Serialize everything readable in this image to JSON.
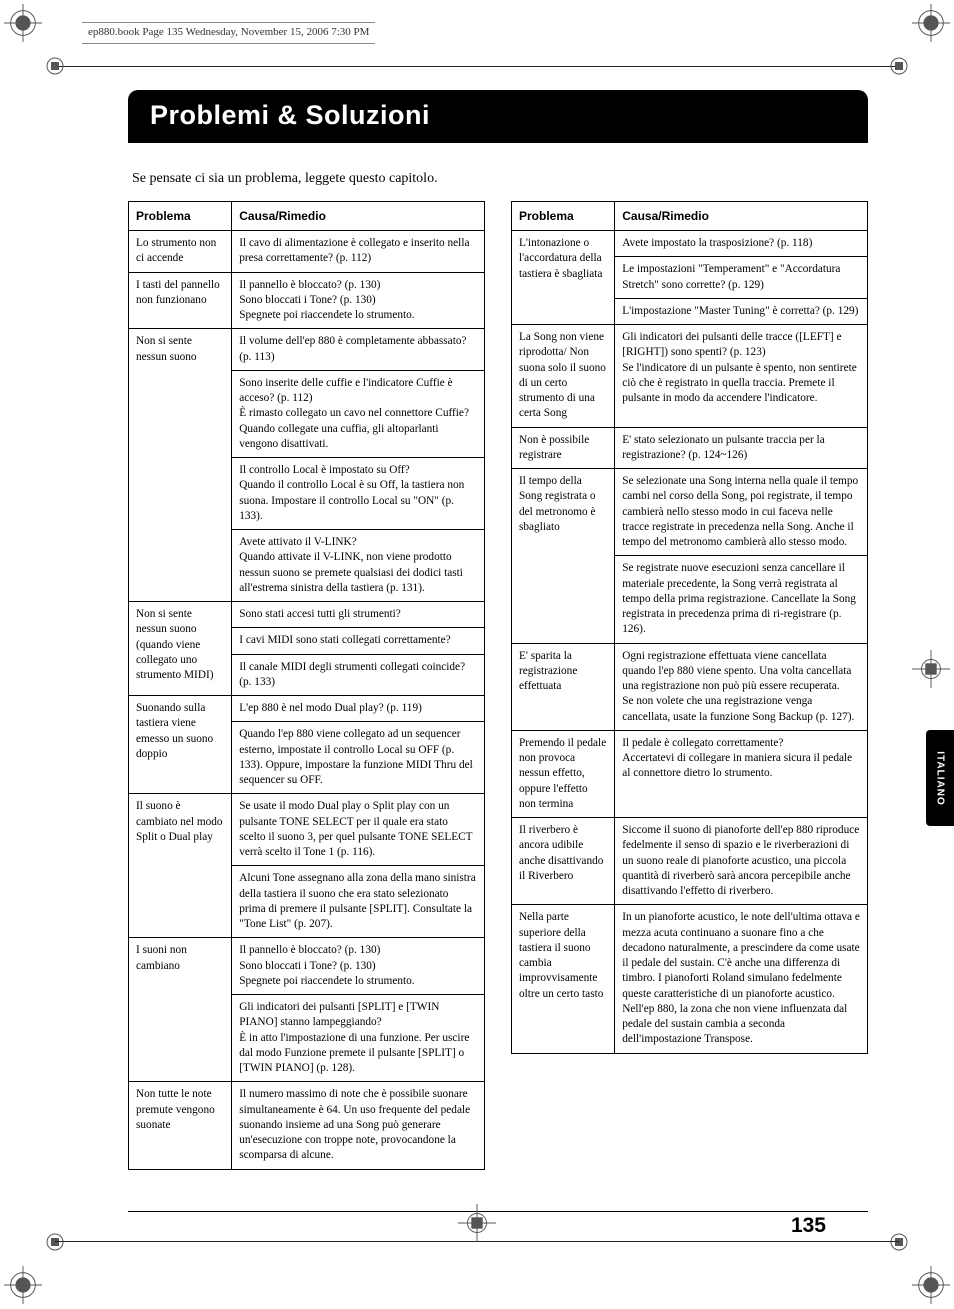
{
  "print_header": "ep880.book  Page 135  Wednesday, November 15, 2006  7:30 PM",
  "title": "Problemi & Soluzioni",
  "intro": "Se pensate ci sia un problema, leggete questo capitolo.",
  "headers": {
    "problem": "Problema",
    "remedy": "Causa/Rimedio"
  },
  "side_tab": "ITALIANO",
  "page_number": "135",
  "left_rows": [
    {
      "p": "Lo strumento non ci accende",
      "r": "Il cavo di alimentazione è collegato e inserito nella presa correttamente? (p. 112)",
      "pspan": 1
    },
    {
      "p": "I tasti del pannello non funzionano",
      "r": "Il pannello è bloccato? (p. 130)\nSono bloccati i Tone? (p. 130)\nSpegnete poi riaccendete lo strumento.",
      "pspan": 1
    },
    {
      "p": "Non si sente nessun suono",
      "r": "Il volume dell'ep 880 è completamente abbassato? (p. 113)",
      "pspan": 4
    },
    {
      "r": "Sono inserite delle cuffie e l'indicatore Cuffie è acceso? (p. 112)\nÈ rimasto collegato un cavo nel connettore Cuffie?\nQuando collegate una cuffia, gli altoparlanti vengono disattivati."
    },
    {
      "r": "Il controllo Local è impostato su Off?\nQuando il controllo Local è su Off, la tastiera non suona. Impostare il controllo Local su \"ON\" (p. 133)."
    },
    {
      "r": "Avete attivato il V-LINK?\nQuando attivate il V-LINK, non viene prodotto nessun suono se premete qualsiasi dei dodici tasti all'estrema sinistra della tastiera (p. 131)."
    },
    {
      "p": "Non si sente nessun suono (quando viene collegato uno strumento MIDI)",
      "r": "Sono stati accesi tutti gli strumenti?",
      "pspan": 3
    },
    {
      "r": "I cavi MIDI sono stati collegati correttamente?"
    },
    {
      "r": "Il canale MIDI degli strumenti collegati coincide? (p. 133)"
    },
    {
      "p": "Suonando sulla tastiera viene emesso un suono doppio",
      "r": "L'ep 880 è nel modo Dual play? (p. 119)",
      "pspan": 2
    },
    {
      "r": "Quando l'ep 880 viene collegato ad un sequencer esterno, impostate il controllo Local su OFF (p. 133). Oppure, impostare la funzione MIDI Thru del sequencer su OFF."
    },
    {
      "p": "Il suono è cambiato nel modo Split o Dual play",
      "r": "Se usate il modo Dual play o Split play con un pulsante TONE SELECT per il quale era stato scelto il suono 3, per quel pulsante TONE SELECT verrà scelto il Tone 1 (p. 116).",
      "pspan": 2
    },
    {
      "r": "Alcuni Tone assegnano alla zona della mano sinistra della tastiera il suono che era stato selezionato prima di premere il pulsante [SPLIT]. Consultate la \"Tone List\" (p. 207)."
    },
    {
      "p": "I suoni non cambiano",
      "r": "Il pannello è bloccato? (p. 130)\nSono bloccati i Tone? (p. 130)\nSpegnete poi riaccendete lo strumento.",
      "pspan": 2
    },
    {
      "r": "Gli indicatori dei pulsanti [SPLIT] e [TWIN PIANO] stanno lampeggiando?\nÈ in atto l'impostazione di una funzione. Per uscire dal modo Funzione premete il pulsante [SPLIT] o [TWIN PIANO] (p. 128)."
    },
    {
      "p": "Non tutte le note premute vengono suonate",
      "r": "Il numero massimo di note che è possibile suonare simultaneamente è 64. Un uso frequente del pedale suonando insieme ad una Song può generare un'esecuzione con troppe note, provocandone la scomparsa di alcune.",
      "pspan": 1
    }
  ],
  "right_rows": [
    {
      "p": "L'intonazione o l'accordatura della tastiera è sbagliata",
      "r": "Avete impostato la trasposizione? (p. 118)",
      "pspan": 3
    },
    {
      "r": "Le impostazioni \"Temperament\" e \"Accordatura Stretch\" sono corrette? (p. 129)"
    },
    {
      "r": "L'impostazione \"Master Tuning\" è corretta? (p. 129)"
    },
    {
      "p": "La Song non viene riprodotta/ Non suona solo il suono di un certo strumento di una certa Song",
      "r": "Gli indicatori dei pulsanti delle tracce ([LEFT] e [RIGHT]) sono spenti? (p. 123)\nSe l'indicatore di un pulsante è spento, non sentirete ciò che è registrato in quella traccia. Premete il pulsante in modo da accendere l'indicatore.",
      "pspan": 1
    },
    {
      "p": "Non è possibile registrare",
      "r": "E' stato selezionato un pulsante traccia per la registrazione? (p. 124~126)",
      "pspan": 1
    },
    {
      "p": "Il tempo della Song registrata o del metronomo è sbagliato",
      "r": "Se selezionate una Song interna nella quale il tempo cambi nel corso della Song, poi registrate, il tempo cambierà nello stesso modo in cui faceva nelle tracce registrate in precedenza nella Song. Anche il tempo del metronomo cambierà allo stesso modo.",
      "pspan": 2
    },
    {
      "r": "Se registrate nuove esecuzioni senza cancellare il materiale precedente, la Song verrà registrata al tempo della prima registrazione. Cancellate la Song registrata in precedenza prima di ri-registrare (p. 126)."
    },
    {
      "p": "E' sparita la registrazione effettuata",
      "r": "Ogni registrazione effettuata viene cancellata quando l'ep 880 viene spento. Una volta cancellata una registrazione non può più essere recuperata.\nSe non volete che una registrazione venga cancellata, usate la funzione Song Backup (p. 127).",
      "pspan": 1
    },
    {
      "p": "Premendo il pedale non provoca nessun effetto, oppure l'effetto non termina",
      "r": "Il pedale è collegato correttamente?\nAccertatevi di collegare in maniera sicura il pedale al connettore dietro lo strumento.",
      "pspan": 1
    },
    {
      "p": "Il riverbero è ancora udibile anche disattivando il Riverbero",
      "r": "Siccome il suono di pianoforte dell'ep 880 riproduce fedelmente il senso di spazio e le riverberazioni di un suono reale di pianoforte acustico, una piccola quantità di riverberò sarà ancora percepibile anche disattivando l'effetto di riverbero.",
      "pspan": 1
    },
    {
      "p": "Nella parte superiore della tastiera il suono cambia improvvisamente oltre un certo tasto",
      "r": "In un pianoforte acustico, le note dell'ultima ottava e mezza acuta continuano a suonare fino a che decadono naturalmente, a prescindere da come usate il pedale del sustain. C'è anche una differenza di timbro. I pianoforti Roland simulano fedelmente queste caratteristiche di un pianoforte acustico. Nell'ep 880, la zona che non viene influenzata dal pedale del sustain cambia a seconda dell'impostazione Transpose.",
      "pspan": 1
    }
  ]
}
